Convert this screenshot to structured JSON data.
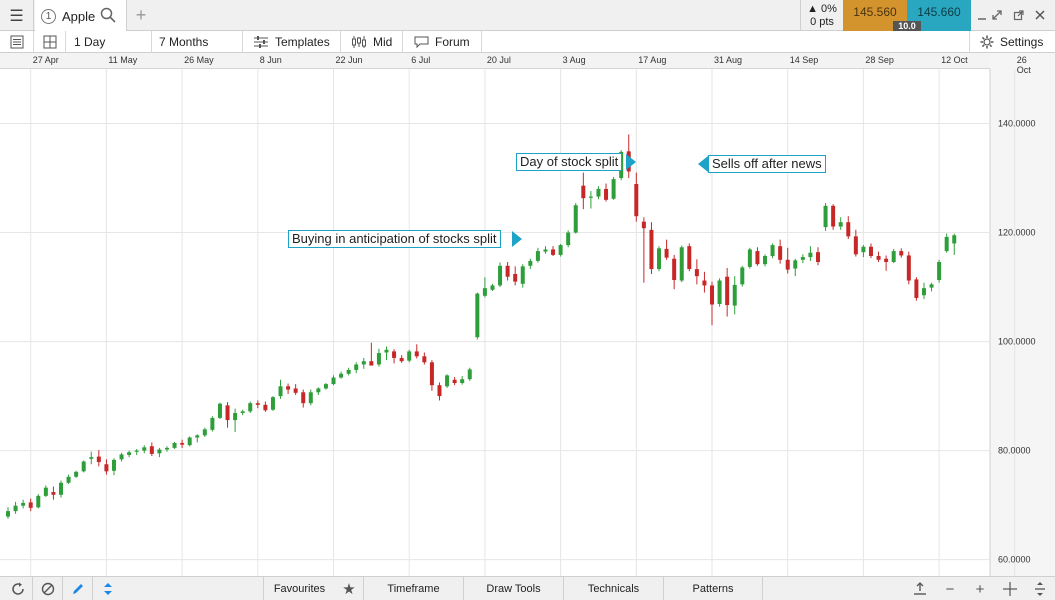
{
  "tab": {
    "number": "1",
    "title": "Apple"
  },
  "quote": {
    "change_pct": "0%",
    "change_pts": "0 pts",
    "sell": "145.560",
    "buy": "145.660",
    "spread": "10.0"
  },
  "toolbar": {
    "interval": "1 Day",
    "range": "7 Months",
    "templates": "Templates",
    "price_type": "Mid",
    "forum": "Forum",
    "settings": "Settings"
  },
  "bottom": {
    "favourites": "Favourites",
    "timeframe": "Timeframe",
    "draw_tools": "Draw Tools",
    "technicals": "Technicals",
    "patterns": "Patterns"
  },
  "annotations": {
    "buying": "Buying in anticipation of stocks split",
    "split_day": "Day of stock split",
    "sells_off": "Sells off after news"
  },
  "chart_data": {
    "type": "candlestick",
    "x_ticks": [
      "27 Apr",
      "11 May",
      "26 May",
      "8 Jun",
      "22 Jun",
      "6 Jul",
      "20 Jul",
      "3 Aug",
      "17 Aug",
      "31 Aug",
      "14 Sep",
      "28 Sep",
      "12 Oct",
      "26 Oct"
    ],
    "y_ticks": [
      "140.0000",
      "120.0000",
      "100.0000",
      "80.0000",
      "60.0000"
    ],
    "ylim": [
      57,
      150
    ],
    "colors": {
      "up": "#2e9e3a",
      "down": "#c62828"
    },
    "candles": [
      [
        67.9,
        69.6,
        67.5,
        68.9
      ],
      [
        68.9,
        70.6,
        68.4,
        69.9
      ],
      [
        69.9,
        71.0,
        69.4,
        70.4
      ],
      [
        70.5,
        71.2,
        68.9,
        69.5
      ],
      [
        69.6,
        72.0,
        69.4,
        71.7
      ],
      [
        71.7,
        73.6,
        71.5,
        73.2
      ],
      [
        72.4,
        73.4,
        71.0,
        71.9
      ],
      [
        71.9,
        74.5,
        71.4,
        74.1
      ],
      [
        74.1,
        75.6,
        73.9,
        75.2
      ],
      [
        75.2,
        76.3,
        75.0,
        76.1
      ],
      [
        76.2,
        78.2,
        76.0,
        78.0
      ],
      [
        78.5,
        79.8,
        77.5,
        78.8
      ],
      [
        78.9,
        80.1,
        77.1,
        77.9
      ],
      [
        77.5,
        78.4,
        75.6,
        76.2
      ],
      [
        76.3,
        78.6,
        75.5,
        78.3
      ],
      [
        78.4,
        79.6,
        78.0,
        79.3
      ],
      [
        79.2,
        80.0,
        78.8,
        79.7
      ],
      [
        79.8,
        80.3,
        79.2,
        80.0
      ],
      [
        80.0,
        81.0,
        79.5,
        80.6
      ],
      [
        80.8,
        81.5,
        79.0,
        79.4
      ],
      [
        79.5,
        80.5,
        78.8,
        80.2
      ],
      [
        80.2,
        80.8,
        79.8,
        80.5
      ],
      [
        80.5,
        81.6,
        80.3,
        81.4
      ],
      [
        81.4,
        82.0,
        80.5,
        81.1
      ],
      [
        81.0,
        82.6,
        80.8,
        82.4
      ],
      [
        82.4,
        83.0,
        81.5,
        82.8
      ],
      [
        82.8,
        84.2,
        82.5,
        83.9
      ],
      [
        83.8,
        86.3,
        83.5,
        86.0
      ],
      [
        86.0,
        88.8,
        85.8,
        88.6
      ],
      [
        88.3,
        88.9,
        84.2,
        85.6
      ],
      [
        85.6,
        87.7,
        83.4,
        86.9
      ],
      [
        86.9,
        87.5,
        86.5,
        87.2
      ],
      [
        87.2,
        89.0,
        86.9,
        88.7
      ],
      [
        88.7,
        89.2,
        87.8,
        88.4
      ],
      [
        88.4,
        89.0,
        87.1,
        87.4
      ],
      [
        87.5,
        90.0,
        87.3,
        89.8
      ],
      [
        90.0,
        93.0,
        89.5,
        91.8
      ],
      [
        91.8,
        92.3,
        90.4,
        91.2
      ],
      [
        91.4,
        92.2,
        90.2,
        90.6
      ],
      [
        90.7,
        91.2,
        87.9,
        88.7
      ],
      [
        88.7,
        91.2,
        88.3,
        90.7
      ],
      [
        90.7,
        91.6,
        90.2,
        91.4
      ],
      [
        91.4,
        92.4,
        91.2,
        92.2
      ],
      [
        92.2,
        93.8,
        92.0,
        93.4
      ],
      [
        93.4,
        94.5,
        93.2,
        94.1
      ],
      [
        94.1,
        95.2,
        93.8,
        94.8
      ],
      [
        94.8,
        96.2,
        94.2,
        95.8
      ],
      [
        95.8,
        97.0,
        95.0,
        96.4
      ],
      [
        96.4,
        99.8,
        96.0,
        95.6
      ],
      [
        95.8,
        98.7,
        95.4,
        97.9
      ],
      [
        98.0,
        99.1,
        96.6,
        98.5
      ],
      [
        98.2,
        98.6,
        96.0,
        97.0
      ],
      [
        97.0,
        97.5,
        96.1,
        96.4
      ],
      [
        96.5,
        98.5,
        96.2,
        98.2
      ],
      [
        98.2,
        99.5,
        96.9,
        97.3
      ],
      [
        97.3,
        98.0,
        95.8,
        96.2
      ],
      [
        96.2,
        96.6,
        91.0,
        92.0
      ],
      [
        92.0,
        92.5,
        89.2,
        90.0
      ],
      [
        91.8,
        94.0,
        91.5,
        93.8
      ],
      [
        93.0,
        93.5,
        92.0,
        92.4
      ],
      [
        92.4,
        93.7,
        92.1,
        93.1
      ],
      [
        93.1,
        95.2,
        92.8,
        94.9
      ],
      [
        100.8,
        109.0,
        100.4,
        108.8
      ],
      [
        108.4,
        111.8,
        108.1,
        109.8
      ],
      [
        109.5,
        110.6,
        109.3,
        110.3
      ],
      [
        110.3,
        114.5,
        110.0,
        113.9
      ],
      [
        113.9,
        114.6,
        111.2,
        111.9
      ],
      [
        112.4,
        113.8,
        110.3,
        111.0
      ],
      [
        110.6,
        114.2,
        109.9,
        113.8
      ],
      [
        113.9,
        115.2,
        113.3,
        114.8
      ],
      [
        114.8,
        117.2,
        114.5,
        116.6
      ],
      [
        116.5,
        117.5,
        116.1,
        116.9
      ],
      [
        116.9,
        117.5,
        115.7,
        115.9
      ],
      [
        115.9,
        117.9,
        115.6,
        117.7
      ],
      [
        117.7,
        120.4,
        117.3,
        120.0
      ],
      [
        120.0,
        125.4,
        119.8,
        125.0
      ],
      [
        128.6,
        131.0,
        124.3,
        126.3
      ],
      [
        126.4,
        127.6,
        124.4,
        126.6
      ],
      [
        126.6,
        128.5,
        126.1,
        128.0
      ],
      [
        128.0,
        129.0,
        125.7,
        126.0
      ],
      [
        126.2,
        130.2,
        126.0,
        129.8
      ],
      [
        130.0,
        135.1,
        129.6,
        134.8
      ],
      [
        134.9,
        138.0,
        130.0,
        131.2
      ],
      [
        128.9,
        131.0,
        122.0,
        123.0
      ],
      [
        122.0,
        122.8,
        110.8,
        120.8
      ],
      [
        120.5,
        121.9,
        112.4,
        113.3
      ],
      [
        113.3,
        117.5,
        112.9,
        117.1
      ],
      [
        117.0,
        118.7,
        115.0,
        115.4
      ],
      [
        115.2,
        115.9,
        109.6,
        111.3
      ],
      [
        111.2,
        117.6,
        110.9,
        117.3
      ],
      [
        117.5,
        118.0,
        112.9,
        113.3
      ],
      [
        113.3,
        115.1,
        110.5,
        112.0
      ],
      [
        111.2,
        112.8,
        109.0,
        110.3
      ],
      [
        110.3,
        111.0,
        103.0,
        106.8
      ],
      [
        106.9,
        111.6,
        106.4,
        111.2
      ],
      [
        111.9,
        113.5,
        104.6,
        106.7
      ],
      [
        106.6,
        112.0,
        105.0,
        110.4
      ],
      [
        110.5,
        113.9,
        110.1,
        113.6
      ],
      [
        113.7,
        117.2,
        113.4,
        116.9
      ],
      [
        116.6,
        117.3,
        113.9,
        114.2
      ],
      [
        114.2,
        116.0,
        113.8,
        115.7
      ],
      [
        115.7,
        118.0,
        115.3,
        117.7
      ],
      [
        117.5,
        118.7,
        114.3,
        115.0
      ],
      [
        115.0,
        117.2,
        112.5,
        113.2
      ],
      [
        113.4,
        115.2,
        112.0,
        114.9
      ],
      [
        115.0,
        116.0,
        114.4,
        115.5
      ],
      [
        115.5,
        117.5,
        114.8,
        116.3
      ],
      [
        116.4,
        117.3,
        114.0,
        114.6
      ],
      [
        121.0,
        125.4,
        120.3,
        124.9
      ],
      [
        124.9,
        125.2,
        120.5,
        121.1
      ],
      [
        121.1,
        122.8,
        120.5,
        121.9
      ],
      [
        121.9,
        123.0,
        118.8,
        119.3
      ],
      [
        119.3,
        120.5,
        115.6,
        116.0
      ],
      [
        116.4,
        117.7,
        115.5,
        117.4
      ],
      [
        117.4,
        118.0,
        115.3,
        115.7
      ],
      [
        115.7,
        116.5,
        114.6,
        115.0
      ],
      [
        115.2,
        115.8,
        113.0,
        114.6
      ],
      [
        114.6,
        117.0,
        114.4,
        116.6
      ],
      [
        116.6,
        117.1,
        115.4,
        115.8
      ],
      [
        115.8,
        116.5,
        110.5,
        111.2
      ],
      [
        111.4,
        111.8,
        107.5,
        108.0
      ],
      [
        108.5,
        110.8,
        107.8,
        109.8
      ],
      [
        109.9,
        110.8,
        109.2,
        110.5
      ],
      [
        111.3,
        115.0,
        110.8,
        114.6
      ],
      [
        116.6,
        119.8,
        116.3,
        119.2
      ],
      [
        118.0,
        119.8,
        115.9,
        119.5
      ]
    ]
  }
}
